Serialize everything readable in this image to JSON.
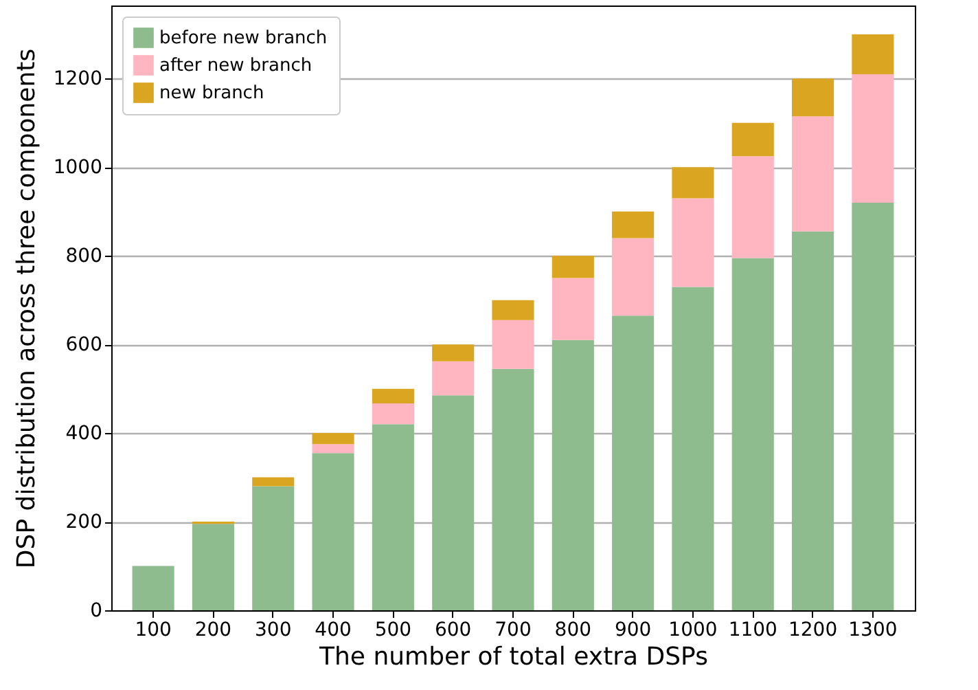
{
  "chart_data": {
    "type": "bar",
    "stacked": true,
    "xlabel": "The number of total extra DSPs",
    "ylabel": "DSP distribution across three components",
    "categories": [
      "100",
      "200",
      "300",
      "400",
      "500",
      "600",
      "700",
      "800",
      "900",
      "1000",
      "1100",
      "1200",
      "1300"
    ],
    "series": [
      {
        "name": "before new branch",
        "color": "#8fbc8f",
        "values": [
          100,
          195,
          280,
          355,
          420,
          485,
          545,
          610,
          665,
          730,
          795,
          855,
          920
        ]
      },
      {
        "name": "after new branch",
        "color": "#ffb6c1",
        "values": [
          null,
          null,
          null,
          20,
          47,
          77,
          110,
          140,
          175,
          200,
          230,
          260,
          290
        ]
      },
      {
        "name": "new branch",
        "color": "#daa520",
        "values": [
          null,
          5,
          20,
          25,
          33,
          38,
          45,
          50,
          60,
          70,
          75,
          85,
          90
        ]
      }
    ],
    "ylim": [
      0,
      1365
    ],
    "yticks": [
      0,
      200,
      400,
      600,
      800,
      1000,
      1200
    ],
    "grid": "y",
    "legend": "top left"
  }
}
